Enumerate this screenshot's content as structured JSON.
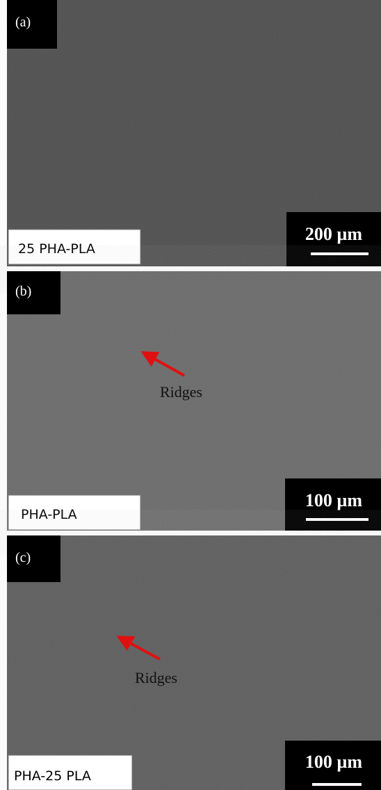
{
  "panels": [
    {
      "label": "(a)",
      "sample": "25 PHA-PLA",
      "scale": "200 µm"
    },
    {
      "label": "(b)",
      "sample": "PHA-PLA",
      "scale": "100 µm",
      "annotation": "Ridges"
    },
    {
      "label": "(c)",
      "sample": "PHA-25 PLA",
      "scale": "100 µm",
      "annotation": "Ridges"
    }
  ]
}
